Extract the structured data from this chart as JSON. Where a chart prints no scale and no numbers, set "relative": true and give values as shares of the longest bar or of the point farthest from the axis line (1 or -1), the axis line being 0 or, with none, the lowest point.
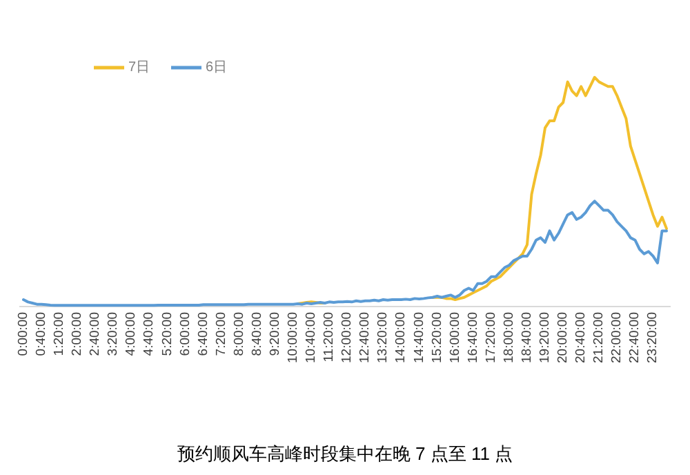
{
  "chart_data": {
    "type": "line",
    "title": "预约顺风车高峰时段集中在晚 7 点至 11 点",
    "relative": true,
    "legend": "top left",
    "grid": false,
    "marker": "none",
    "line_style": "solid",
    "categories": [
      "0:00:00",
      null,
      null,
      null,
      "0:40:00",
      null,
      null,
      null,
      "1:20:00",
      null,
      null,
      null,
      "2:00:00",
      null,
      null,
      null,
      "2:40:00",
      null,
      null,
      null,
      "3:20:00",
      null,
      null,
      null,
      "4:00:00",
      null,
      null,
      null,
      "4:40:00",
      null,
      null,
      null,
      "5:20:00",
      null,
      null,
      null,
      "6:00:00",
      null,
      null,
      null,
      "6:40:00",
      null,
      null,
      null,
      "7:20:00",
      null,
      null,
      null,
      "8:00:00",
      null,
      null,
      null,
      "8:40:00",
      null,
      null,
      null,
      "9:20:00",
      null,
      null,
      null,
      "10:00:00",
      null,
      null,
      null,
      "10:40:00",
      null,
      null,
      null,
      "11:20:00",
      null,
      null,
      null,
      "12:00:00",
      null,
      null,
      null,
      "12:40:00",
      null,
      null,
      null,
      "13:20:00",
      null,
      null,
      null,
      "14:00:00",
      null,
      null,
      null,
      "14:40:00",
      null,
      null,
      null,
      "15:20:00",
      null,
      null,
      null,
      "16:00:00",
      null,
      null,
      null,
      "16:40:00",
      null,
      null,
      null,
      "17:20:00",
      null,
      null,
      null,
      "18:00:00",
      null,
      null,
      null,
      "18:40:00",
      null,
      null,
      null,
      "19:20:00",
      null,
      null,
      null,
      "20:00:00",
      null,
      null,
      null,
      "20:40:00",
      null,
      null,
      null,
      "21:20:00",
      null,
      null,
      null,
      "22:00:00",
      null,
      null,
      null,
      "22:40:00",
      null,
      null,
      null,
      "23:20:00",
      null,
      null,
      null
    ],
    "series": [
      {
        "name": "7日",
        "color": "#f2bf2c",
        "values": [
          null,
          null,
          null,
          null,
          null,
          null,
          null,
          null,
          null,
          null,
          null,
          null,
          null,
          null,
          null,
          null,
          null,
          null,
          null,
          null,
          null,
          null,
          null,
          null,
          null,
          null,
          null,
          null,
          null,
          null,
          null,
          null,
          null,
          null,
          null,
          null,
          null,
          null,
          null,
          null,
          null,
          null,
          null,
          null,
          null,
          null,
          null,
          null,
          null,
          null,
          null,
          null,
          null,
          null,
          null,
          null,
          null,
          null,
          null,
          null,
          null,
          0.012,
          0.015,
          0.018,
          0.02,
          0.018,
          0.015,
          0.015,
          null,
          null,
          null,
          null,
          null,
          null,
          null,
          null,
          null,
          null,
          null,
          null,
          null,
          null,
          null,
          null,
          null,
          null,
          null,
          null,
          null,
          null,
          null,
          0.04,
          0.04,
          0.04,
          0.035,
          0.035,
          0.03,
          0.035,
          0.04,
          0.05,
          0.06,
          0.07,
          0.08,
          0.09,
          0.11,
          0.12,
          0.13,
          0.15,
          0.17,
          0.19,
          0.21,
          0.23,
          0.27,
          0.49,
          0.58,
          0.66,
          0.78,
          0.81,
          0.81,
          0.87,
          0.89,
          0.98,
          0.94,
          0.92,
          0.96,
          0.92,
          0.96,
          1,
          0.98,
          0.97,
          0.96,
          0.96,
          0.92,
          0.87,
          0.82,
          0.7,
          0.64,
          0.58,
          0.52,
          0.46,
          0.4,
          0.35,
          0.39,
          0.34
        ]
      },
      {
        "name": "6日",
        "color": "#5b9bd5",
        "values": [
          0.03,
          0.02,
          0.015,
          0.01,
          0.01,
          0.008,
          0.006,
          0.005,
          0.005,
          0.005,
          0.005,
          0.005,
          0.005,
          0.005,
          0.005,
          0.005,
          0.005,
          0.005,
          0.005,
          0.005,
          0.005,
          0.005,
          0.005,
          0.005,
          0.005,
          0.005,
          0.005,
          0.005,
          0.005,
          0.005,
          0.006,
          0.006,
          0.006,
          0.006,
          0.006,
          0.006,
          0.006,
          0.006,
          0.006,
          0.006,
          0.008,
          0.008,
          0.008,
          0.008,
          0.008,
          0.008,
          0.008,
          0.008,
          0.008,
          0.008,
          0.01,
          0.01,
          0.01,
          0.01,
          0.01,
          0.01,
          0.01,
          0.01,
          0.01,
          0.01,
          0.01,
          0.012,
          0.01,
          0.015,
          0.012,
          0.015,
          0.018,
          0.015,
          0.02,
          0.018,
          0.02,
          0.02,
          0.022,
          0.02,
          0.025,
          0.022,
          0.025,
          0.025,
          0.028,
          0.025,
          0.03,
          0.028,
          0.03,
          0.03,
          0.03,
          0.032,
          0.03,
          0.035,
          0.033,
          0.035,
          0.038,
          0.04,
          0.045,
          0.04,
          0.045,
          0.05,
          0.04,
          0.05,
          0.07,
          0.08,
          0.07,
          0.1,
          0.1,
          0.11,
          0.13,
          0.13,
          0.15,
          0.17,
          0.18,
          0.2,
          0.21,
          0.22,
          0.22,
          0.25,
          0.29,
          0.3,
          0.28,
          0.33,
          0.29,
          0.32,
          0.36,
          0.4,
          0.41,
          0.38,
          0.39,
          0.41,
          0.44,
          0.46,
          0.44,
          0.42,
          0.42,
          0.4,
          0.37,
          0.35,
          0.33,
          0.3,
          0.29,
          0.25,
          0.23,
          0.24,
          0.22,
          0.19,
          0.33,
          0.33
        ]
      }
    ]
  }
}
